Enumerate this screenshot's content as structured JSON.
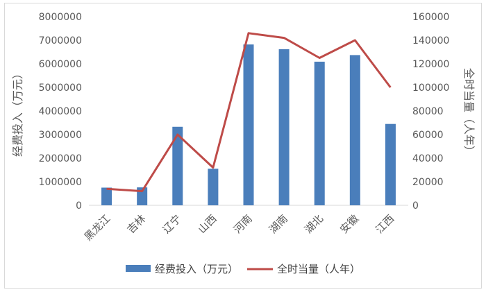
{
  "chart_data": {
    "type": "bar+line",
    "categories": [
      "黑龙江",
      "吉林",
      "辽宁",
      "山西",
      "河南",
      "湖南",
      "湖北",
      "安徽",
      "江西"
    ],
    "series": [
      {
        "name": "经费投入（万元）",
        "type": "bar",
        "axis": "left",
        "color": "#4a7ebb",
        "values": [
          750000,
          760000,
          3330000,
          1550000,
          6820000,
          6620000,
          6090000,
          6370000,
          3450000
        ]
      },
      {
        "name": "全时当量（人年）",
        "type": "line",
        "axis": "right",
        "color": "#be4b48",
        "values": [
          14000,
          12000,
          60000,
          32000,
          146000,
          142000,
          125000,
          140000,
          100000
        ]
      }
    ],
    "y_left": {
      "label": "经费投入（万元）",
      "ylim": [
        0,
        8000000
      ],
      "ticks": [
        "0",
        "1000000",
        "2000000",
        "3000000",
        "4000000",
        "5000000",
        "6000000",
        "7000000",
        "8000000"
      ]
    },
    "y_right": {
      "label": "全时当量（人年）",
      "ylim": [
        0,
        160000
      ],
      "ticks": [
        "0",
        "20000",
        "40000",
        "60000",
        "80000",
        "100000",
        "120000",
        "140000",
        "160000"
      ]
    },
    "grid": false,
    "legend": "bottom"
  }
}
